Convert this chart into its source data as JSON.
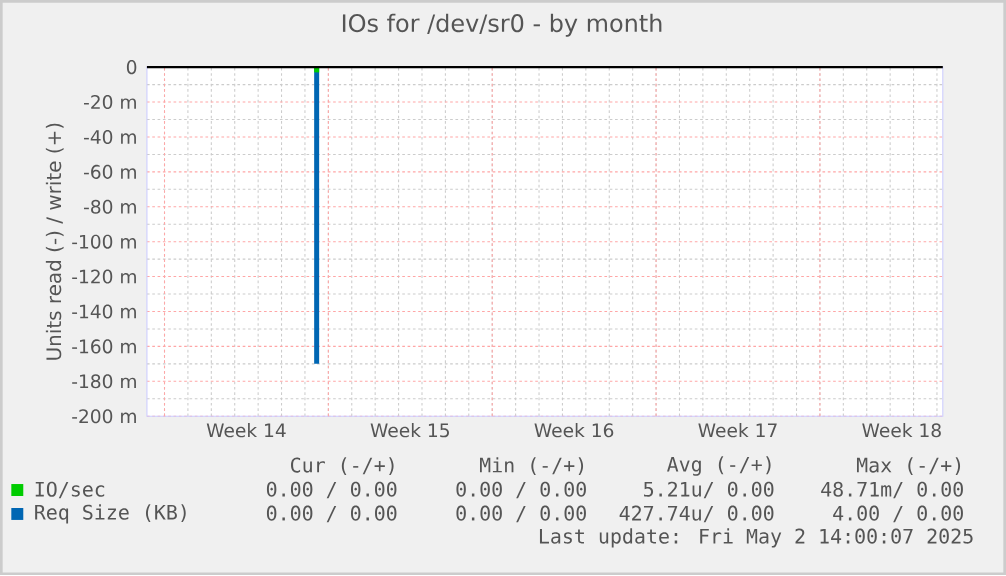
{
  "chart_data": {
    "type": "bar",
    "title": "IOs for /dev/sr0 - by month",
    "ylabel": "Units read (-) / write (+)",
    "categories": [
      null,
      null,
      null,
      null,
      null,
      null,
      null,
      null,
      "Week 14",
      null,
      null,
      null,
      null,
      null,
      null,
      null,
      null,
      null,
      null,
      null,
      null,
      null,
      "Week 15",
      null,
      null,
      null,
      null,
      null,
      null,
      null,
      null,
      null,
      null,
      null,
      null,
      null,
      "Week 16",
      null,
      null,
      null,
      null,
      null,
      null,
      null,
      null,
      null,
      null,
      null,
      null,
      null,
      "Week 17",
      null,
      null,
      null,
      null,
      null,
      null,
      null,
      null,
      null,
      null,
      null,
      null,
      null,
      "Week 18",
      null,
      null,
      null
    ],
    "ylim": [
      -200,
      0
    ],
    "yticks": [
      {
        "value": 0,
        "label": "0"
      },
      {
        "value": -20,
        "label": "-20 m"
      },
      {
        "value": -40,
        "label": "-40 m"
      },
      {
        "value": -60,
        "label": "-60 m"
      },
      {
        "value": -80,
        "label": "-80 m"
      },
      {
        "value": -100,
        "label": "-100 m"
      },
      {
        "value": -120,
        "label": "-120 m"
      },
      {
        "value": -140,
        "label": "-140 m"
      },
      {
        "value": -160,
        "label": "-160 m"
      },
      {
        "value": -180,
        "label": "-180 m"
      },
      {
        "value": -200,
        "label": "-200 m"
      }
    ],
    "grid": true,
    "legend": "bottom left",
    "series": [
      {
        "name": "Req Size (KB)",
        "color": "#0066b3",
        "values": [
          0,
          0,
          0,
          0,
          0,
          0,
          0,
          0,
          0,
          0,
          0,
          0,
          0,
          0,
          -170,
          0,
          0,
          0,
          0,
          0,
          0,
          0,
          0,
          0,
          0,
          0,
          0,
          0,
          0,
          0,
          0,
          0,
          0,
          0,
          0,
          0,
          0,
          0,
          0,
          0,
          0,
          0,
          0,
          0,
          0,
          0,
          0,
          0,
          0,
          0,
          0,
          0,
          0,
          0,
          0,
          0,
          0,
          0,
          0,
          0,
          0,
          0,
          0,
          0,
          0,
          0,
          0,
          0
        ]
      },
      {
        "name": "IO/sec",
        "color": "#00cc00",
        "values": [
          0,
          0,
          0,
          0,
          0,
          0,
          0,
          0,
          0,
          0,
          0,
          0,
          0,
          0,
          -3,
          0,
          0,
          0,
          0,
          0,
          0,
          0,
          0,
          0,
          0,
          0,
          0,
          0,
          0,
          0,
          0,
          0,
          0,
          0,
          0,
          0,
          0,
          0,
          0,
          0,
          0,
          0,
          0,
          0,
          0,
          0,
          0,
          0,
          0,
          0,
          0,
          0,
          0,
          0,
          0,
          0,
          0,
          0,
          0,
          0,
          0,
          0,
          0,
          0,
          0,
          0,
          0,
          0
        ]
      }
    ],
    "ref_lines": [
      {
        "axis": "y",
        "value": 0,
        "color": "#000000"
      }
    ],
    "annotations": [
      "Cur (-/+)",
      "Min (-/+)",
      "Avg (-/+)",
      "Max (-/+)",
      "0.00 / 0.00",
      "0.00 / 0.00",
      "5.21u/ 0.00",
      "48.71m/ 0.00",
      "0.00 / 0.00",
      "0.00 / 0.00",
      "427.74u/ 0.00",
      "4.00 / 0.00",
      "Last update: Fri May  2 14:00:07 2025"
    ]
  }
}
